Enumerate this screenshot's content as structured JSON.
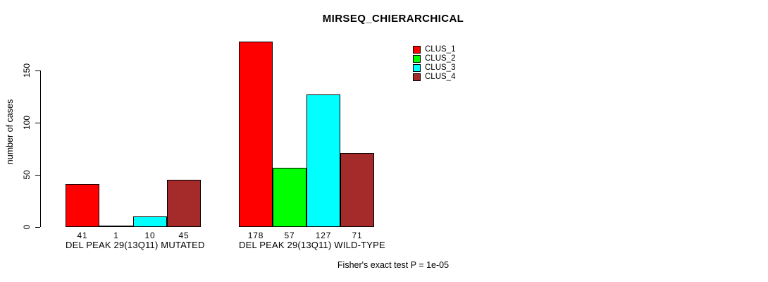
{
  "chart": {
    "title": "MIRSEQ_CHIERARCHICAL",
    "note": "Fisher's exact test P = 1e-05"
  },
  "chart_data": {
    "type": "bar",
    "title": "MIRSEQ_CHIERARCHICAL",
    "xlabel": "",
    "ylabel": "number of cases",
    "categories": [
      "DEL PEAK 29(13Q11) MUTATED",
      "DEL PEAK 29(13Q11) WILD-TYPE"
    ],
    "series": [
      {
        "name": "CLUS_1",
        "color": "#ff0000",
        "values": [
          41,
          178
        ]
      },
      {
        "name": "CLUS_2",
        "color": "#00ff00",
        "values": [
          1,
          57
        ]
      },
      {
        "name": "CLUS_3",
        "color": "#00ffff",
        "values": [
          10,
          127
        ]
      },
      {
        "name": "CLUS_4",
        "color": "#a52a2a",
        "values": [
          45,
          71
        ]
      }
    ],
    "bar_value_labels": [
      [
        "41",
        "1",
        "10",
        "45"
      ],
      [
        "178",
        "57",
        "127",
        "71"
      ]
    ],
    "yticks": [
      0,
      50,
      100,
      150
    ],
    "ylim": [
      0,
      185
    ],
    "grid": false,
    "legend_position": "top-right",
    "annotation": "Fisher's exact test P = 1e-05"
  }
}
